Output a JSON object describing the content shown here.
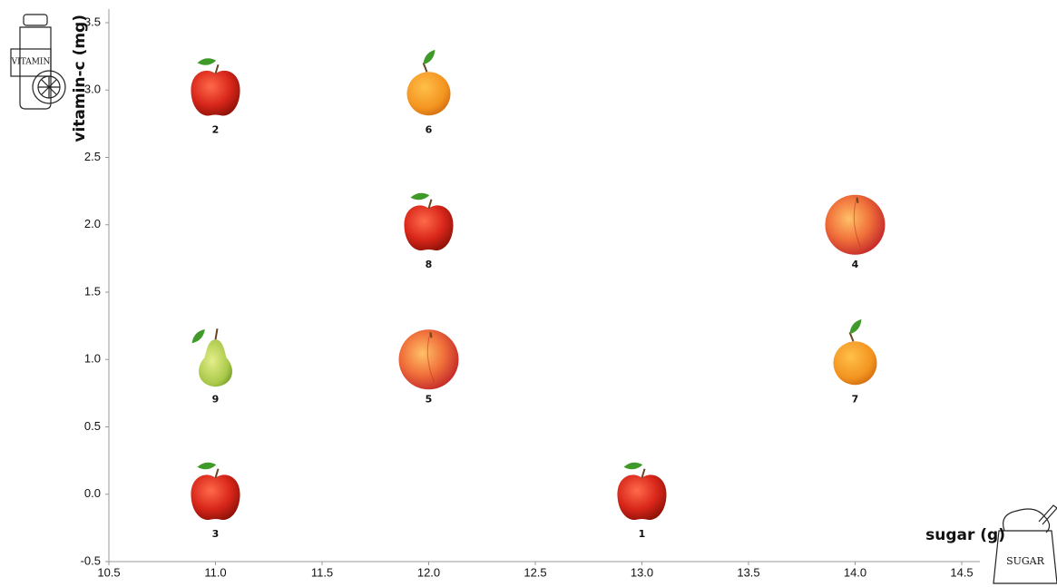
{
  "chart_data": {
    "type": "scatter",
    "x_label": "sugar (g)",
    "y_label": "vitamin-c (mg)",
    "x": [
      13,
      11,
      11,
      14,
      12,
      12,
      14,
      12,
      11
    ],
    "values": [
      0,
      3,
      0,
      2,
      1,
      3,
      1,
      2,
      1
    ],
    "labels": [
      "1",
      "2",
      "3",
      "4",
      "5",
      "6",
      "7",
      "8",
      "9"
    ],
    "markers": [
      "apple",
      "apple",
      "apple",
      "peach",
      "peach",
      "orange",
      "orange",
      "apple",
      "pear"
    ],
    "xlim": [
      10.5,
      14.5
    ],
    "xticks": [
      10.5,
      {
        "value": 11,
        "label": "11.0"
      },
      11.5,
      {
        "value": 12,
        "label": "12.0"
      },
      12.5,
      {
        "value": 13,
        "label": "13.0"
      },
      13.5,
      {
        "value": 14,
        "label": "14.0"
      },
      14.5
    ],
    "ylim": [
      -0.5,
      3.5
    ],
    "yticks": [
      -0.5,
      {
        "value": 0,
        "label": "0.0"
      },
      0.5,
      {
        "value": 1,
        "label": "1.0"
      },
      1.5,
      {
        "value": 2,
        "label": "2.0"
      },
      2.5,
      {
        "value": 3,
        "label": "3.0"
      },
      3.5
    ]
  }
}
